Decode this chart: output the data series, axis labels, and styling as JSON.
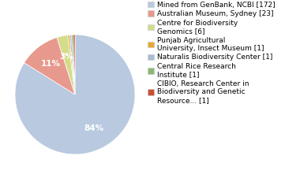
{
  "labels": [
    "Mined from GenBank, NCBI [172]",
    "Australian Museum, Sydney [23]",
    "Centre for Biodiversity\nGenomics [6]",
    "Punjab Agricultural\nUniversity, Insect Museum [1]",
    "Naturalis Biodiversity Center [1]",
    "Central Rice Research\nInstitute [1]",
    "CIBIO, Research Center in\nBiodiversity and Genetic\nResource... [1]"
  ],
  "values": [
    172,
    23,
    6,
    1,
    1,
    1,
    1
  ],
  "colors": [
    "#b8c9e0",
    "#e8998d",
    "#d4dc8a",
    "#e8a830",
    "#a8bcd4",
    "#8ab870",
    "#c94f30"
  ],
  "bg_color": "#ffffff",
  "fontsize": 6.5,
  "pct_fontsize": 7.5,
  "startangle": 90
}
